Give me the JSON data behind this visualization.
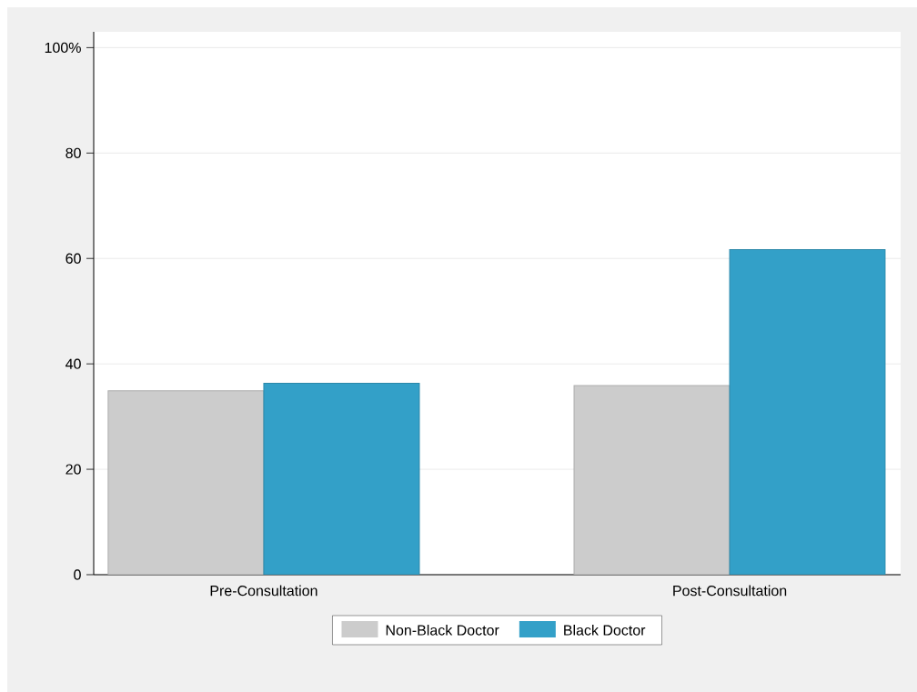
{
  "chart_data": {
    "type": "bar",
    "categories": [
      "Pre-Consultation",
      "Post-Consultation"
    ],
    "series": [
      {
        "name": "Non-Black Doctor",
        "color": "#cccccc",
        "values": [
          34.9,
          35.9
        ]
      },
      {
        "name": "Black Doctor",
        "color": "#33a0c8",
        "values": [
          36.3,
          61.7
        ]
      }
    ],
    "ylim": [
      0,
      103
    ],
    "yticks": [
      0,
      20,
      40,
      60,
      80,
      {
        "value": 100,
        "label": "100%"
      }
    ],
    "grid": "y",
    "legend": "bottom"
  }
}
